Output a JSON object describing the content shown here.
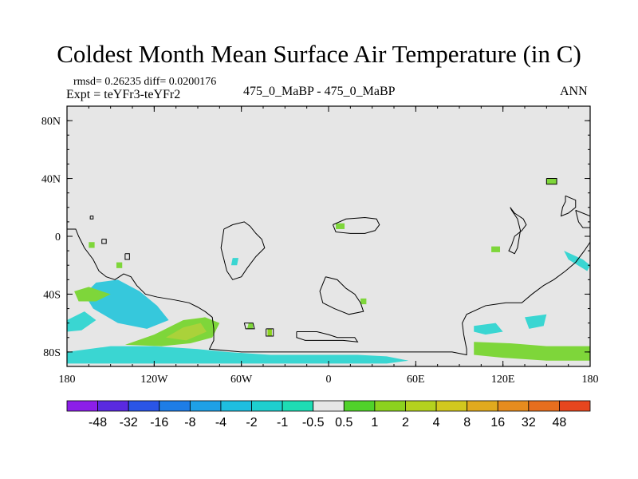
{
  "title": "Coldest Month Mean Surface Air Temperature (in C)",
  "stats": "rmsd= 0.26235 diff= 0.0200176",
  "expt": "Expt = teYFr3-teYFr2",
  "case_label": "475_0_MaBP - 475_0_MaBP",
  "season": "ANN",
  "chart_data": {
    "type": "heatmap",
    "title": "Coldest Month Mean Surface Air Temperature (in C)",
    "projection": "cylindrical-equidistant",
    "xlim": [
      -180,
      180
    ],
    "ylim": [
      -90,
      90
    ],
    "x_ticks": [
      {
        "value": -180,
        "label": "180"
      },
      {
        "value": -120,
        "label": "120W"
      },
      {
        "value": -60,
        "label": "60W"
      },
      {
        "value": 0,
        "label": "0"
      },
      {
        "value": 60,
        "label": "60E"
      },
      {
        "value": 120,
        "label": "120E"
      },
      {
        "value": 180,
        "label": "180"
      }
    ],
    "y_ticks": [
      {
        "value": 80,
        "label": "80N"
      },
      {
        "value": 40,
        "label": "40N"
      },
      {
        "value": 0,
        "label": "0"
      },
      {
        "value": -40,
        "label": "40S"
      },
      {
        "value": -80,
        "label": "80S"
      }
    ],
    "background_color": "#e6e6e6",
    "colorbar": {
      "colors": [
        "#8c1ee8",
        "#5a2ae0",
        "#2a55e6",
        "#1e7de6",
        "#1ea0e6",
        "#1ebee0",
        "#1ecfcf",
        "#1edcb4",
        "#e6e6e6",
        "#50d22a",
        "#8cd21e",
        "#b4d21e",
        "#d2c81e",
        "#e1aa1e",
        "#e68c1e",
        "#e66e1e",
        "#e6461e"
      ],
      "labels": [
        "-48",
        "-32",
        "-16",
        "-8",
        "-4",
        "-2",
        "-1",
        "-0.5",
        "0.5",
        "1",
        "2",
        "4",
        "8",
        "16",
        "32",
        "48"
      ]
    },
    "regions": [
      {
        "name": "south-pacific-warm",
        "value": 1.5,
        "color": "#7ed63a",
        "poly": [
          [
            -140,
            -75
          ],
          [
            -120,
            -68
          ],
          [
            -100,
            -58
          ],
          [
            -85,
            -56
          ],
          [
            -75,
            -60
          ],
          [
            -80,
            -70
          ],
          [
            -95,
            -74
          ],
          [
            -115,
            -76
          ]
        ]
      },
      {
        "name": "south-pacific-warm-core",
        "value": 3,
        "color": "#aad23a",
        "poly": [
          [
            -112,
            -70
          ],
          [
            -100,
            -63
          ],
          [
            -88,
            -60
          ],
          [
            -84,
            -66
          ],
          [
            -98,
            -72
          ]
        ]
      },
      {
        "name": "southern-ocean-cool",
        "value": -1.5,
        "color": "#3ad6d2",
        "poly": [
          [
            -180,
            -80
          ],
          [
            -150,
            -76
          ],
          [
            -120,
            -76
          ],
          [
            -90,
            -78
          ],
          [
            -70,
            -80
          ],
          [
            -40,
            -82
          ],
          [
            -10,
            -82
          ],
          [
            20,
            -82
          ],
          [
            40,
            -83
          ],
          [
            55,
            -86
          ],
          [
            40,
            -88
          ],
          [
            0,
            -88
          ],
          [
            -60,
            -88
          ],
          [
            -120,
            -88
          ],
          [
            -180,
            -88
          ]
        ]
      },
      {
        "name": "pacific-west-cool",
        "value": -2,
        "color": "#36c8dc",
        "poly": [
          [
            -160,
            -32
          ],
          [
            -145,
            -30
          ],
          [
            -130,
            -38
          ],
          [
            -118,
            -48
          ],
          [
            -110,
            -58
          ],
          [
            -125,
            -64
          ],
          [
            -145,
            -60
          ],
          [
            -162,
            -50
          ],
          [
            -168,
            -40
          ]
        ]
      },
      {
        "name": "pacific-far-west-cool",
        "value": -1.5,
        "color": "#3ad6d2",
        "poly": [
          [
            -180,
            -58
          ],
          [
            -168,
            -52
          ],
          [
            -160,
            -58
          ],
          [
            -170,
            -65
          ],
          [
            -180,
            -66
          ]
        ]
      },
      {
        "name": "pacific-warm-band",
        "value": 1.2,
        "color": "#7ed63a",
        "poly": [
          [
            -175,
            -38
          ],
          [
            -165,
            -35
          ],
          [
            -150,
            -40
          ],
          [
            -160,
            -45
          ],
          [
            -172,
            -45
          ]
        ]
      },
      {
        "name": "antarctic-east-warm",
        "value": 1.5,
        "color": "#7ed63a",
        "poly": [
          [
            100,
            -73
          ],
          [
            125,
            -74
          ],
          [
            150,
            -76
          ],
          [
            180,
            -76
          ],
          [
            180,
            -86
          ],
          [
            150,
            -86
          ],
          [
            120,
            -84
          ],
          [
            100,
            -82
          ]
        ]
      },
      {
        "name": "indian-south-cool",
        "value": -1.5,
        "color": "#3ad6d2",
        "poly": [
          [
            100,
            -62
          ],
          [
            115,
            -60
          ],
          [
            120,
            -66
          ],
          [
            108,
            -68
          ],
          [
            100,
            -66
          ]
        ]
      },
      {
        "name": "australia-south-cool",
        "value": -1.5,
        "color": "#3ad6d2",
        "poly": [
          [
            135,
            -56
          ],
          [
            150,
            -54
          ],
          [
            148,
            -62
          ],
          [
            138,
            -64
          ]
        ]
      },
      {
        "name": "east-pacific-streak",
        "value": -1.2,
        "color": "#3ad6d2",
        "poly": [
          [
            162,
            -10
          ],
          [
            175,
            -16
          ],
          [
            180,
            -20
          ],
          [
            178,
            -24
          ],
          [
            165,
            -16
          ]
        ]
      },
      {
        "name": "patagonia-warm-1",
        "value": 1.5,
        "color": "#7ed63a",
        "poly": [
          [
            -55,
            -60
          ],
          [
            -52,
            -60
          ],
          [
            -52,
            -64
          ],
          [
            -56,
            -64
          ]
        ]
      },
      {
        "name": "patagonia-warm-2",
        "value": 2,
        "color": "#8cd21e",
        "poly": [
          [
            -42,
            -64
          ],
          [
            -39,
            -64
          ],
          [
            -39,
            -69
          ],
          [
            -42,
            -69
          ]
        ]
      },
      {
        "name": "amazon-cool",
        "value": -1.2,
        "color": "#3ad6d2",
        "poly": [
          [
            -66,
            -15
          ],
          [
            -62,
            -15
          ],
          [
            -63,
            -20
          ],
          [
            -67,
            -20
          ]
        ]
      },
      {
        "name": "sahara-warm",
        "value": 1.2,
        "color": "#7ed63a",
        "poly": [
          [
            5,
            9
          ],
          [
            11,
            9
          ],
          [
            11,
            5
          ],
          [
            5,
            5
          ]
        ]
      },
      {
        "name": "africa-south-warm",
        "value": 1.2,
        "color": "#7ed63a",
        "poly": [
          [
            22,
            -43
          ],
          [
            26,
            -43
          ],
          [
            26,
            -47
          ],
          [
            22,
            -47
          ]
        ]
      },
      {
        "name": "pacific-island-warm",
        "value": 1.5,
        "color": "#7ed63a",
        "poly": [
          [
            -165,
            -4
          ],
          [
            -161,
            -4
          ],
          [
            -161,
            -8
          ],
          [
            -165,
            -8
          ]
        ]
      },
      {
        "name": "pacific-island-warm-2",
        "value": 1.5,
        "color": "#7ed63a",
        "poly": [
          [
            -146,
            -18
          ],
          [
            -142,
            -18
          ],
          [
            -142,
            -22
          ],
          [
            -146,
            -22
          ]
        ]
      },
      {
        "name": "sumatra-warm",
        "value": 1.5,
        "color": "#7ed63a",
        "poly": [
          [
            112,
            -7
          ],
          [
            118,
            -7
          ],
          [
            118,
            -11
          ],
          [
            112,
            -11
          ]
        ]
      },
      {
        "name": "east-asia-warm",
        "value": 1.5,
        "color": "#7ed63a",
        "poly": [
          [
            150,
            40
          ],
          [
            157,
            40
          ],
          [
            157,
            36
          ],
          [
            150,
            36
          ]
        ]
      }
    ],
    "outlines": [
      [
        [
          -180,
          5
        ],
        [
          -174,
          5
        ],
        [
          -172,
          0
        ],
        [
          -168,
          -8
        ],
        [
          -162,
          -16
        ],
        [
          -158,
          -24
        ],
        [
          -153,
          -28
        ],
        [
          -147,
          -30
        ],
        [
          -141,
          -26
        ],
        [
          -136,
          -28
        ],
        [
          -132,
          -34
        ],
        [
          -126,
          -40
        ],
        [
          -118,
          -42
        ],
        [
          -106,
          -44
        ],
        [
          -96,
          -46
        ],
        [
          -90,
          -49
        ],
        [
          -85,
          -52
        ],
        [
          -80,
          -56
        ],
        [
          -79,
          -64
        ],
        [
          -79,
          -72
        ],
        [
          -82,
          -78
        ],
        [
          -60,
          -80
        ],
        [
          -30,
          -80
        ],
        [
          0,
          -80
        ],
        [
          30,
          -80
        ],
        [
          60,
          -80
        ],
        [
          85,
          -80
        ],
        [
          95,
          -82
        ],
        [
          95,
          -78
        ],
        [
          93,
          -68
        ],
        [
          92,
          -60
        ],
        [
          95,
          -54
        ],
        [
          108,
          -48
        ],
        [
          122,
          -46
        ],
        [
          133,
          -46
        ],
        [
          140,
          -40
        ],
        [
          148,
          -34
        ],
        [
          155,
          -30
        ],
        [
          163,
          -24
        ],
        [
          170,
          -18
        ],
        [
          176,
          -10
        ],
        [
          180,
          -4
        ]
      ],
      [
        [
          -72,
          5
        ],
        [
          -66,
          8
        ],
        [
          -58,
          10
        ],
        [
          -54,
          7
        ],
        [
          -50,
          2
        ],
        [
          -46,
          -2
        ],
        [
          -44,
          -8
        ],
        [
          -50,
          -14
        ],
        [
          -56,
          -22
        ],
        [
          -60,
          -28
        ],
        [
          -66,
          -30
        ],
        [
          -70,
          -24
        ],
        [
          -72,
          -16
        ],
        [
          -74,
          -8
        ]
      ],
      [
        [
          3,
          8
        ],
        [
          12,
          12
        ],
        [
          25,
          13
        ],
        [
          33,
          12
        ],
        [
          35,
          8
        ],
        [
          32,
          4
        ],
        [
          25,
          2
        ],
        [
          15,
          2
        ],
        [
          5,
          3
        ]
      ],
      [
        [
          -2,
          -28
        ],
        [
          6,
          -30
        ],
        [
          12,
          -36
        ],
        [
          18,
          -40
        ],
        [
          22,
          -46
        ],
        [
          24,
          -52
        ],
        [
          14,
          -54
        ],
        [
          4,
          -50
        ],
        [
          -4,
          -46
        ],
        [
          -6,
          -38
        ]
      ],
      [
        [
          -22,
          -66
        ],
        [
          -8,
          -66
        ],
        [
          0,
          -68
        ],
        [
          6,
          -70
        ],
        [
          18,
          -70
        ],
        [
          20,
          -73
        ],
        [
          10,
          -72
        ],
        [
          0,
          -72
        ],
        [
          -16,
          -72
        ],
        [
          -22,
          -70
        ]
      ],
      [
        [
          125,
          20
        ],
        [
          128,
          16
        ],
        [
          134,
          12
        ],
        [
          136,
          8
        ],
        [
          133,
          4
        ],
        [
          128,
          0
        ],
        [
          126,
          -6
        ],
        [
          124,
          -10
        ],
        [
          128,
          -12
        ],
        [
          130,
          -8
        ],
        [
          131,
          -2
        ],
        [
          132,
          4
        ],
        [
          130,
          12
        ],
        [
          126,
          18
        ]
      ],
      [
        [
          150,
          40
        ],
        [
          157,
          40
        ],
        [
          157,
          36
        ],
        [
          150,
          36
        ]
      ],
      [
        [
          163,
          28
        ],
        [
          170,
          25
        ],
        [
          170,
          20
        ],
        [
          165,
          16
        ],
        [
          160,
          14
        ],
        [
          161,
          20
        ],
        [
          163,
          24
        ]
      ],
      [
        [
          170,
          18
        ],
        [
          180,
          14
        ],
        [
          180,
          6
        ],
        [
          175,
          6
        ],
        [
          172,
          10
        ]
      ],
      [
        [
          -164,
          14
        ],
        [
          -162,
          14
        ],
        [
          -162,
          12
        ],
        [
          -164,
          12
        ]
      ],
      [
        [
          -156,
          -2
        ],
        [
          -153,
          -2
        ],
        [
          -153,
          -5
        ],
        [
          -156,
          -5
        ]
      ],
      [
        [
          -140,
          -12
        ],
        [
          -137,
          -12
        ],
        [
          -137,
          -16
        ],
        [
          -140,
          -16
        ]
      ],
      [
        [
          -58,
          -60
        ],
        [
          -52,
          -60
        ],
        [
          -51,
          -64
        ],
        [
          -57,
          -64
        ]
      ],
      [
        [
          -43,
          -64
        ],
        [
          -38,
          -64
        ],
        [
          -38,
          -69
        ],
        [
          -43,
          -69
        ]
      ]
    ]
  }
}
